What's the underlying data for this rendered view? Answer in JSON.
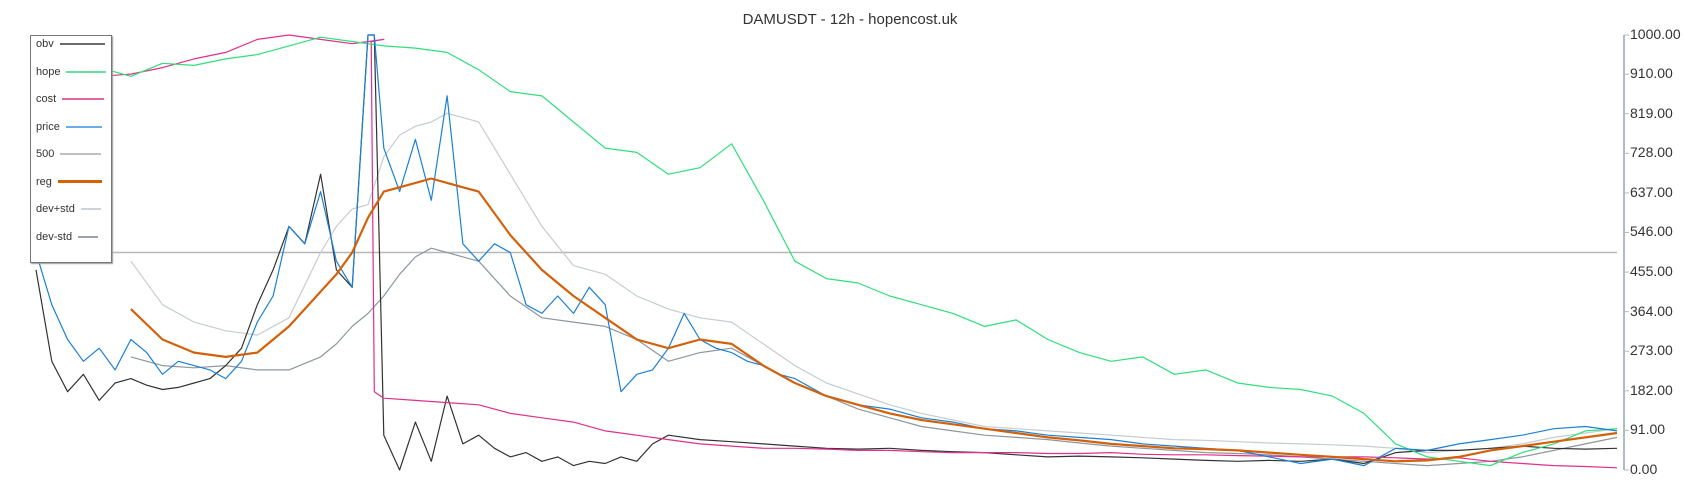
{
  "title": "DAMUSDT - 12h - hopencost.uk",
  "legend": [
    {
      "label": "obv",
      "color": "#6b6b6b",
      "width": 45
    },
    {
      "label": "hope",
      "color": "#66e0a0",
      "width": 40
    },
    {
      "label": "cost",
      "color": "#e066a8",
      "width": 42
    },
    {
      "label": "price",
      "color": "#6aaee8",
      "width": 36
    },
    {
      "label": "500",
      "color": "#c0c0c0",
      "width": 41
    },
    {
      "label": "reg",
      "color": "#d4610a",
      "width": 44
    },
    {
      "label": "dev+std",
      "color": "#cdd3d8",
      "width": 20
    },
    {
      "label": "dev-std",
      "color": "#9aa3aa",
      "width": 20
    }
  ],
  "yaxis": {
    "ticks": [
      "1000.00",
      "910.00",
      "819.00",
      "728.00",
      "637.00",
      "546.00",
      "455.00",
      "364.00",
      "273.00",
      "182.00",
      "91.00",
      "0.00"
    ]
  },
  "chart_data": {
    "type": "line",
    "title": "DAMUSDT - 12h - hopencost.uk",
    "xlabel": "",
    "ylabel": "",
    "ylim": [
      0,
      1000
    ],
    "y_axis_position": "right",
    "grid": false,
    "legend_position": "top-left",
    "x_range": [
      0,
      100
    ],
    "series": [
      {
        "name": "hope",
        "color": "#2ee07a",
        "x": [
          0,
          2,
          4,
          6,
          8,
          10,
          12,
          14,
          16,
          18,
          20,
          22,
          24,
          26,
          28,
          30,
          32,
          34,
          36,
          38,
          40,
          42,
          44,
          46,
          48,
          50,
          52,
          54,
          56,
          58,
          60,
          62,
          64,
          66,
          68,
          70,
          72,
          74,
          76,
          78,
          80,
          82,
          84,
          86,
          88,
          90,
          92,
          94,
          96,
          98,
          100
        ],
        "values": [
          920,
          930,
          925,
          905,
          935,
          930,
          945,
          955,
          975,
          995,
          985,
          975,
          970,
          960,
          920,
          870,
          860,
          800,
          740,
          730,
          680,
          695,
          750,
          620,
          480,
          440,
          430,
          400,
          380,
          360,
          330,
          345,
          300,
          270,
          250,
          260,
          220,
          230,
          200,
          190,
          185,
          170,
          130,
          60,
          30,
          20,
          10,
          40,
          60,
          90,
          95
        ]
      },
      {
        "name": "cost",
        "color": "#e0308a",
        "x": [
          0,
          1,
          2,
          4,
          6,
          8,
          10,
          12,
          14,
          16,
          18,
          20,
          22,
          21.2,
          21.4,
          22,
          24,
          26,
          28,
          30,
          32,
          34,
          36,
          38,
          40,
          42,
          44,
          46,
          48,
          50,
          52,
          54,
          56,
          58,
          60,
          62,
          64,
          66,
          68,
          70,
          72,
          74,
          76,
          78,
          80,
          82,
          84,
          86,
          88,
          90,
          92,
          94,
          96,
          98,
          100
        ],
        "values": [
          820,
          820,
          910,
          905,
          910,
          925,
          945,
          960,
          990,
          1000,
          990,
          980,
          990,
          985,
          180,
          165,
          160,
          155,
          150,
          130,
          120,
          110,
          90,
          80,
          70,
          60,
          55,
          50,
          50,
          48,
          45,
          45,
          42,
          40,
          40,
          40,
          38,
          38,
          40,
          36,
          35,
          35,
          33,
          32,
          30,
          30,
          30,
          28,
          25,
          28,
          20,
          15,
          10,
          8,
          5
        ]
      },
      {
        "name": "price",
        "color": "#1a80d8",
        "x": [
          0,
          1,
          2,
          3,
          4,
          5,
          6,
          7,
          8,
          9,
          10,
          11,
          12,
          13,
          14,
          15,
          16,
          17,
          18,
          19,
          20,
          21,
          21.4,
          22,
          23,
          24,
          25,
          26,
          27,
          28,
          29,
          30,
          31,
          32,
          33,
          34,
          35,
          36,
          37,
          38,
          39,
          40,
          41,
          42,
          43,
          44,
          45,
          46,
          47,
          48,
          50,
          52,
          54,
          56,
          58,
          60,
          62,
          64,
          66,
          68,
          70,
          72,
          74,
          76,
          78,
          80,
          82,
          84,
          86,
          88,
          90,
          92,
          94,
          96,
          98,
          100
        ],
        "values": [
          500,
          380,
          300,
          250,
          280,
          230,
          300,
          270,
          220,
          250,
          240,
          230,
          210,
          250,
          340,
          400,
          560,
          520,
          640,
          480,
          420,
          1000,
          1000,
          740,
          640,
          760,
          620,
          860,
          520,
          480,
          520,
          500,
          380,
          360,
          400,
          360,
          420,
          380,
          180,
          220,
          230,
          280,
          360,
          300,
          280,
          270,
          250,
          240,
          220,
          210,
          170,
          150,
          140,
          120,
          110,
          95,
          90,
          80,
          75,
          70,
          60,
          55,
          50,
          45,
          30,
          15,
          25,
          10,
          50,
          45,
          60,
          70,
          80,
          95,
          100,
          90
        ]
      },
      {
        "name": "obv",
        "color": "#333333",
        "x": [
          0,
          1,
          2,
          3,
          4,
          5,
          6,
          7,
          8,
          9,
          10,
          11,
          12,
          13,
          14,
          15,
          16,
          17,
          18,
          19,
          20,
          21,
          21.4,
          22,
          23,
          24,
          25,
          26,
          27,
          28,
          29,
          30,
          31,
          32,
          33,
          34,
          35,
          36,
          37,
          38,
          39,
          40,
          42,
          44,
          46,
          48,
          50,
          52,
          54,
          56,
          58,
          60,
          62,
          64,
          66,
          68,
          70,
          72,
          74,
          76,
          78,
          80,
          82,
          84,
          86,
          88,
          90,
          92,
          94,
          96,
          98,
          100
        ],
        "values": [
          460,
          250,
          180,
          220,
          160,
          200,
          210,
          195,
          185,
          190,
          200,
          210,
          240,
          280,
          380,
          460,
          560,
          520,
          680,
          460,
          420,
          1000,
          1000,
          80,
          0,
          110,
          20,
          170,
          60,
          80,
          50,
          30,
          40,
          20,
          30,
          10,
          20,
          15,
          30,
          20,
          60,
          80,
          70,
          65,
          60,
          55,
          50,
          48,
          50,
          45,
          42,
          40,
          35,
          30,
          32,
          30,
          28,
          25,
          22,
          20,
          22,
          20,
          25,
          15,
          40,
          45,
          45,
          50,
          55,
          50,
          48,
          50
        ]
      },
      {
        "name": "500",
        "color": "#b8b8b8",
        "x": [
          0,
          100
        ],
        "values": [
          500,
          500
        ]
      },
      {
        "name": "reg",
        "color": "#d4610a",
        "x": [
          6,
          8,
          10,
          12,
          14,
          16,
          18,
          19,
          20,
          21,
          22,
          23,
          24,
          25,
          26,
          27,
          28,
          30,
          32,
          34,
          36,
          38,
          40,
          42,
          44,
          46,
          48,
          50,
          52,
          54,
          56,
          58,
          60,
          62,
          64,
          66,
          68,
          70,
          72,
          74,
          76,
          78,
          80,
          82,
          84,
          86,
          88,
          90,
          92,
          94,
          96,
          98,
          100
        ],
        "values": [
          370,
          300,
          270,
          260,
          270,
          330,
          410,
          450,
          500,
          580,
          640,
          650,
          660,
          670,
          660,
          650,
          640,
          540,
          460,
          400,
          350,
          300,
          280,
          300,
          290,
          240,
          200,
          170,
          150,
          130,
          115,
          105,
          95,
          85,
          75,
          68,
          60,
          55,
          50,
          48,
          45,
          40,
          35,
          30,
          25,
          20,
          22,
          30,
          45,
          55,
          65,
          75,
          85
        ]
      },
      {
        "name": "dev+std",
        "color": "#c6ccd1",
        "x": [
          6,
          8,
          10,
          12,
          14,
          16,
          18,
          19,
          20,
          21,
          22,
          23,
          24,
          25,
          26,
          27,
          28,
          30,
          32,
          34,
          36,
          38,
          40,
          42,
          44,
          46,
          48,
          50,
          52,
          54,
          56,
          58,
          60,
          62,
          64,
          66,
          68,
          70,
          72,
          74,
          76,
          78,
          80,
          82,
          84,
          86,
          88,
          90,
          92,
          94,
          96,
          98,
          100
        ],
        "values": [
          480,
          380,
          340,
          320,
          310,
          350,
          500,
          560,
          600,
          610,
          720,
          770,
          790,
          800,
          820,
          810,
          800,
          680,
          560,
          470,
          450,
          400,
          370,
          350,
          340,
          290,
          240,
          200,
          175,
          150,
          130,
          115,
          100,
          95,
          90,
          85,
          80,
          75,
          70,
          68,
          65,
          62,
          60,
          58,
          55,
          50,
          40,
          45,
          50,
          60,
          75,
          85,
          95
        ]
      },
      {
        "name": "dev-std",
        "color": "#8e979e",
        "x": [
          6,
          8,
          10,
          12,
          14,
          16,
          18,
          19,
          20,
          21,
          22,
          23,
          24,
          25,
          26,
          27,
          28,
          30,
          32,
          34,
          36,
          38,
          40,
          42,
          44,
          46,
          48,
          50,
          52,
          54,
          56,
          58,
          60,
          62,
          64,
          66,
          68,
          70,
          72,
          74,
          76,
          78,
          80,
          82,
          84,
          86,
          88,
          90,
          92,
          94,
          96,
          98,
          100
        ],
        "values": [
          260,
          240,
          235,
          240,
          230,
          230,
          260,
          290,
          330,
          360,
          400,
          450,
          490,
          510,
          500,
          490,
          480,
          400,
          350,
          340,
          330,
          300,
          250,
          270,
          280,
          240,
          200,
          170,
          140,
          120,
          100,
          90,
          80,
          75,
          70,
          62,
          55,
          50,
          45,
          40,
          38,
          35,
          30,
          25,
          20,
          15,
          10,
          15,
          20,
          30,
          45,
          60,
          75
        ]
      }
    ]
  }
}
